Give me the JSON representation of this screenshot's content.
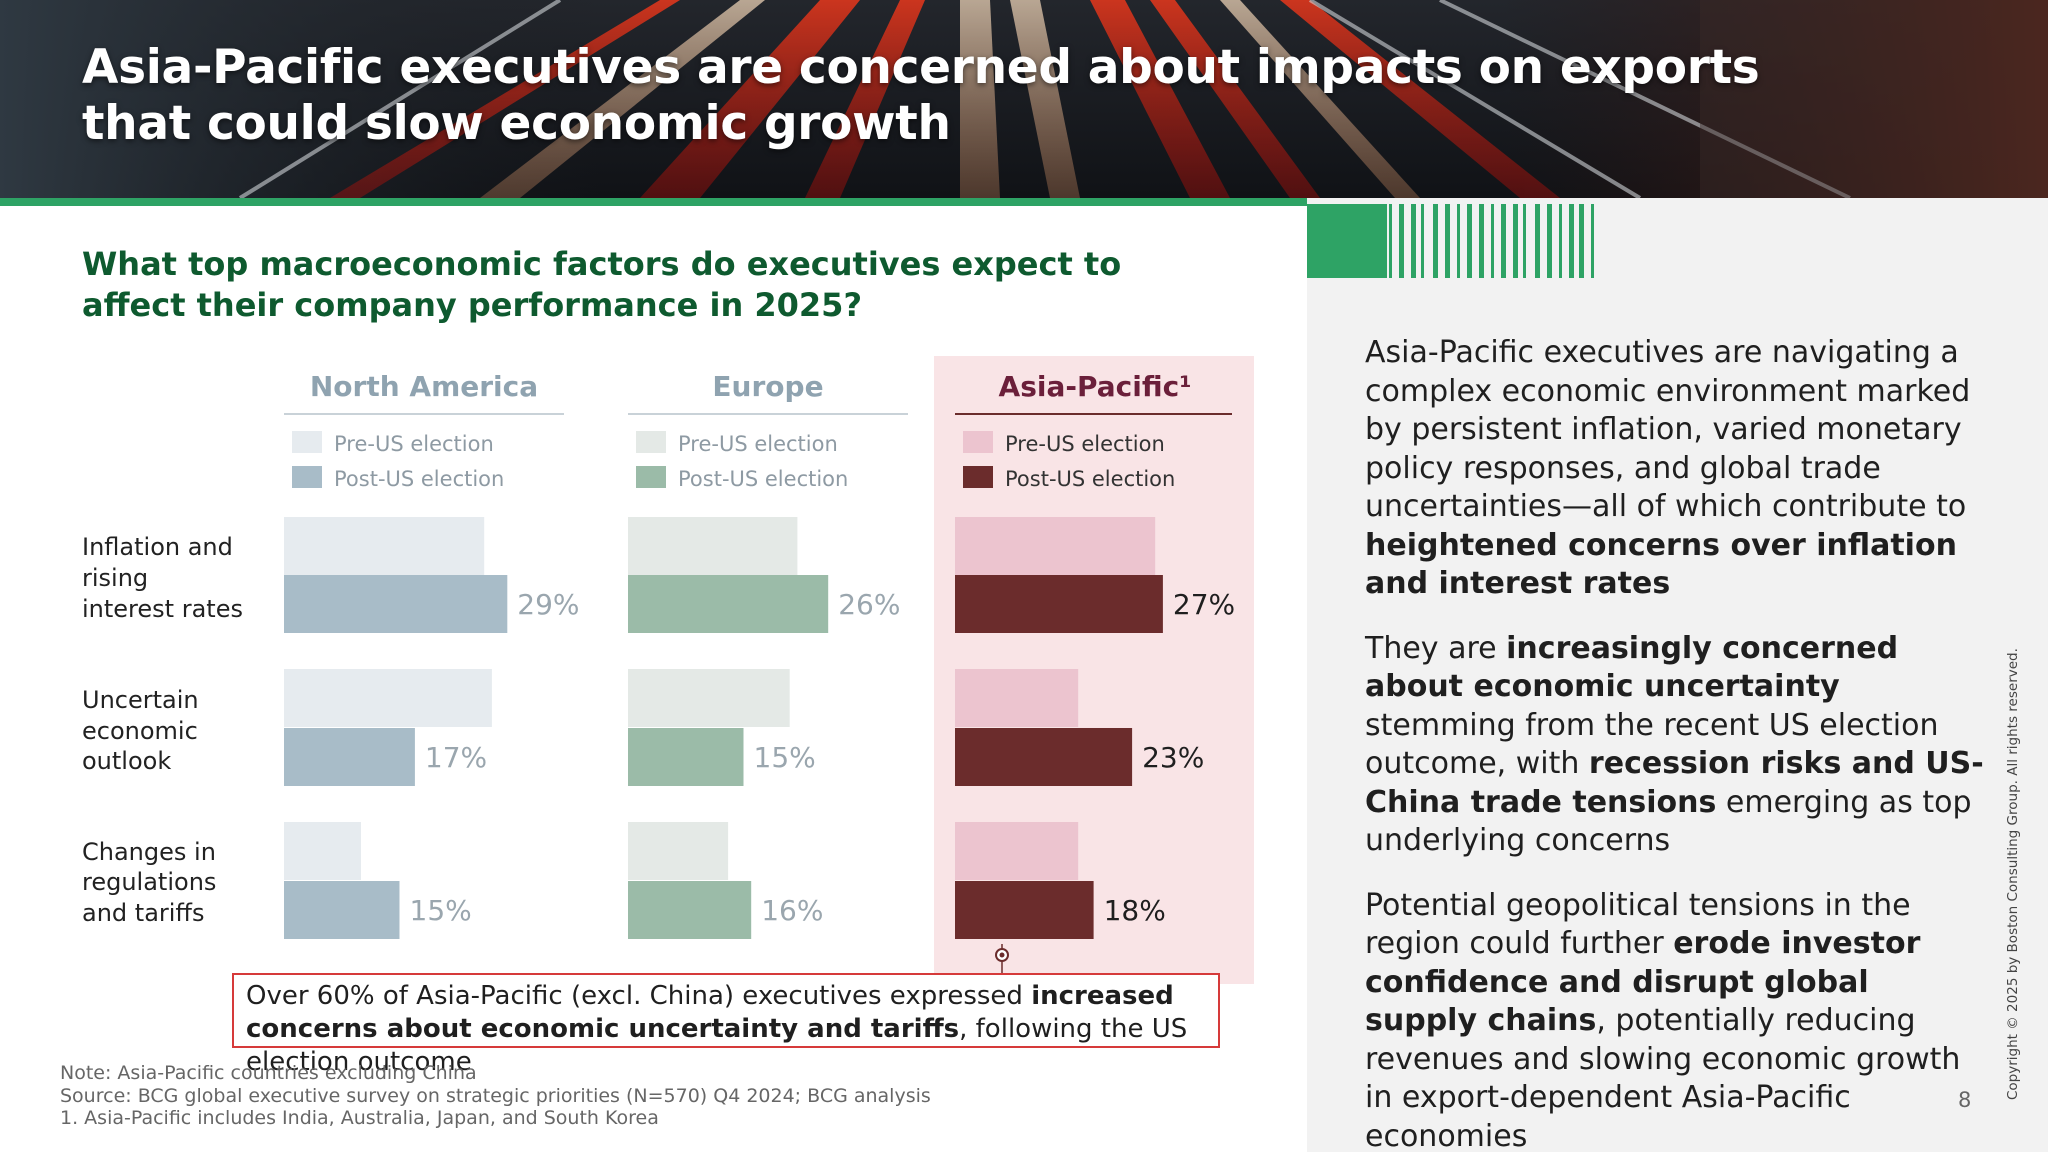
{
  "header": {
    "title": "Asia-Pacific executives are concerned about impacts on exports that could slow economic growth"
  },
  "question": "What top macroeconomic factors do executives expect to affect their company performance in 2025?",
  "chart_data": {
    "type": "bar",
    "orientation": "horizontal",
    "title": "",
    "categories": [
      "Inflation and rising interest rates",
      "Uncertain economic outlook",
      "Changes in regulations and tariffs"
    ],
    "panels": [
      {
        "region": "North America",
        "series": [
          {
            "name": "Pre-US election",
            "values": [
              26,
              27,
              10
            ],
            "color": "#e6ebef"
          },
          {
            "name": "Post-US election",
            "values": [
              29,
              17,
              15
            ],
            "color": "#a8bcc8"
          }
        ],
        "labels": [
          "29%",
          "17%",
          "15%"
        ]
      },
      {
        "region": "Europe",
        "series": [
          {
            "name": "Pre-US election",
            "values": [
              22,
              21,
              13
            ],
            "color": "#e4e9e6"
          },
          {
            "name": "Post-US election",
            "values": [
              26,
              15,
              16
            ],
            "color": "#9bbba8"
          }
        ],
        "labels": [
          "26%",
          "15%",
          "16%"
        ]
      },
      {
        "region": "Asia-Pacific¹",
        "series": [
          {
            "name": "Pre-US election",
            "values": [
              26,
              16,
              16
            ],
            "color": "#ecc4cf"
          },
          {
            "name": "Post-US election",
            "values": [
              27,
              23,
              18
            ],
            "color": "#6b2c2c"
          }
        ],
        "labels": [
          "27%",
          "23%",
          "18%"
        ]
      }
    ],
    "xlim": [
      0,
      30
    ],
    "grid": false,
    "legend": "under each panel title"
  },
  "colors": {
    "brand_green": "#2ea365",
    "question_green": "#0e5a2f",
    "apac_highlight": "#f9e4e6",
    "apac_title": "#6b1f3a",
    "callout_border": "#d63a3a",
    "panel_title_grey": "#8fa3b0"
  },
  "callout": {
    "text_1": "Over 60% of Asia-Pacific (excl. China) executives expressed ",
    "bold_1": "increased concerns about economic uncertainty and tariffs",
    "text_2": ", following the US election outcome"
  },
  "right_panel": {
    "p1_text": "Asia-Pacific executives are navigating a complex economic environment marked by persistent inflation, varied monetary policy responses, and global trade uncertainties—all of which contribute to ",
    "p1_bold": "heightened concerns over inflation and interest rates",
    "p2_text_1": "They are ",
    "p2_bold_1": "increasingly concerned about economic uncertainty",
    "p2_text_2": " stemming from the recent US election outcome, with ",
    "p2_bold_2": "recession risks and US-China trade tensions",
    "p2_text_3": " emerging as top underlying concerns",
    "p3_text_1": "Potential geopolitical tensions in the region could further ",
    "p3_bold": "erode investor confidence and disrupt global supply chains",
    "p3_text_2": ", potentially reducing revenues and slowing economic growth in export-dependent Asia-Pacific economies"
  },
  "notes": {
    "note": "Note: Asia-Pacific countries excluding China",
    "source": "Source: BCG global executive survey on strategic priorities (N=570) Q4 2024; BCG analysis",
    "footnote": "1. Asia-Pacific includes India, Australia, Japan, and South Korea"
  },
  "copyright": "Copyright © 2025 by Boston Consulting Group. All rights reserved.",
  "page_number": "8"
}
